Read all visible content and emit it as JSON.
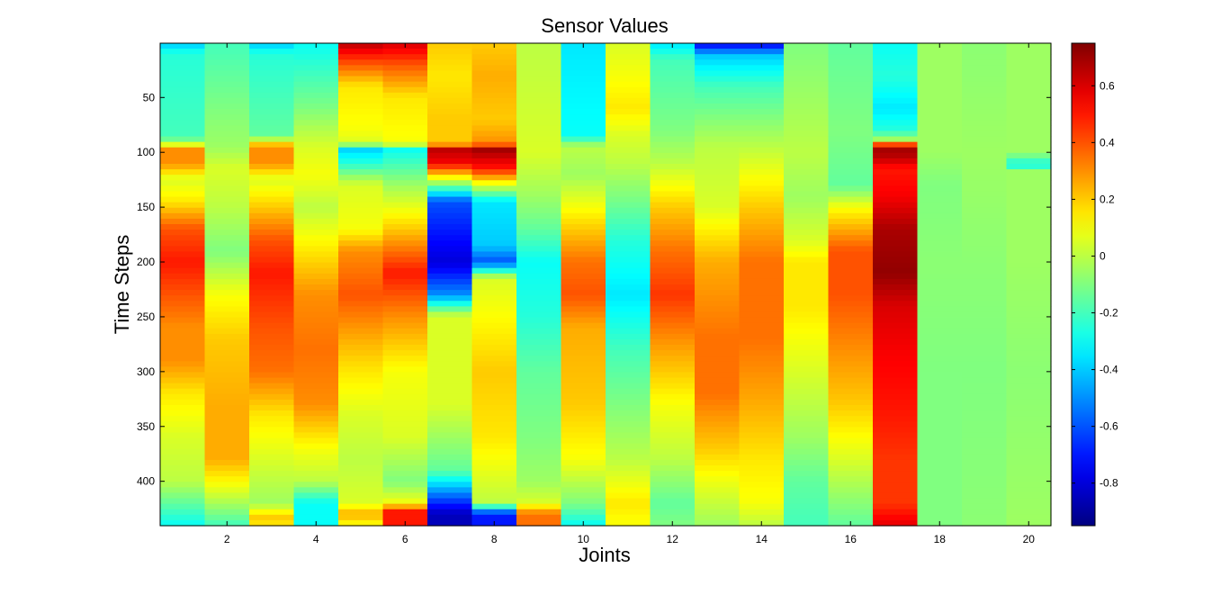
{
  "chart_data": {
    "type": "heatmap",
    "title": "Sensor Values",
    "xlabel": "Joints",
    "ylabel": "Time Steps",
    "x_range": [
      0.5,
      20.5
    ],
    "y_range": [
      0.5,
      440.5
    ],
    "y_reversed": true,
    "x_ticks": [
      2,
      4,
      6,
      8,
      10,
      12,
      14,
      16,
      18,
      20
    ],
    "y_ticks": [
      50,
      100,
      150,
      200,
      250,
      300,
      350,
      400
    ],
    "colorbar": {
      "colormap": "jet",
      "range": [
        -0.95,
        0.75
      ],
      "ticks": [
        -0.8,
        -0.6,
        -0.4,
        -0.2,
        0,
        0.2,
        0.4,
        0.6
      ]
    },
    "joints": [
      1,
      2,
      3,
      4,
      5,
      6,
      7,
      8,
      9,
      10,
      11,
      12,
      13,
      14,
      15,
      16,
      17,
      18,
      19,
      20
    ],
    "profiles": [
      [
        [
          1,
          -0.4
        ],
        [
          10,
          -0.25
        ],
        [
          85,
          -0.2
        ],
        [
          92,
          -0.05
        ],
        [
          95,
          0.3
        ],
        [
          110,
          0.3
        ],
        [
          125,
          0.05
        ],
        [
          145,
          0.15
        ],
        [
          170,
          0.4
        ],
        [
          200,
          0.5
        ],
        [
          230,
          0.4
        ],
        [
          260,
          0.3
        ],
        [
          290,
          0.3
        ],
        [
          320,
          0.15
        ],
        [
          360,
          0.05
        ],
        [
          400,
          0
        ],
        [
          420,
          -0.15
        ],
        [
          440,
          -0.3
        ]
      ],
      [
        [
          1,
          -0.2
        ],
        [
          60,
          -0.1
        ],
        [
          95,
          -0.05
        ],
        [
          115,
          0.05
        ],
        [
          150,
          0
        ],
        [
          190,
          -0.1
        ],
        [
          230,
          0.1
        ],
        [
          270,
          0.2
        ],
        [
          330,
          0.25
        ],
        [
          380,
          0.25
        ],
        [
          410,
          0.05
        ],
        [
          440,
          -0.2
        ]
      ],
      [
        [
          1,
          -0.4
        ],
        [
          10,
          -0.25
        ],
        [
          85,
          -0.15
        ],
        [
          95,
          0.3
        ],
        [
          110,
          0.3
        ],
        [
          125,
          0.05
        ],
        [
          150,
          0.2
        ],
        [
          180,
          0.4
        ],
        [
          210,
          0.5
        ],
        [
          260,
          0.4
        ],
        [
          300,
          0.35
        ],
        [
          340,
          0.15
        ],
        [
          380,
          0.05
        ],
        [
          420,
          -0.05
        ],
        [
          432,
          0.2
        ],
        [
          440,
          0.15
        ]
      ],
      [
        [
          1,
          -0.3
        ],
        [
          60,
          -0.1
        ],
        [
          95,
          0.05
        ],
        [
          120,
          0.1
        ],
        [
          150,
          0
        ],
        [
          190,
          0.15
        ],
        [
          230,
          0.3
        ],
        [
          280,
          0.35
        ],
        [
          330,
          0.3
        ],
        [
          370,
          0.1
        ],
        [
          400,
          0
        ],
        [
          420,
          -0.3
        ],
        [
          440,
          -0.3
        ]
      ],
      [
        [
          1,
          0.65
        ],
        [
          15,
          0.45
        ],
        [
          40,
          0.15
        ],
        [
          80,
          0.1
        ],
        [
          92,
          0.05
        ],
        [
          96,
          -0.4
        ],
        [
          110,
          -0.25
        ],
        [
          130,
          0.05
        ],
        [
          170,
          0.1
        ],
        [
          190,
          0.3
        ],
        [
          230,
          0.4
        ],
        [
          270,
          0.25
        ],
        [
          300,
          0.15
        ],
        [
          340,
          0.05
        ],
        [
          380,
          0
        ],
        [
          420,
          0.05
        ],
        [
          430,
          0.25
        ],
        [
          440,
          0.1
        ]
      ],
      [
        [
          1,
          0.6
        ],
        [
          20,
          0.4
        ],
        [
          50,
          0.15
        ],
        [
          92,
          0.1
        ],
        [
          97,
          -0.3
        ],
        [
          130,
          -0.05
        ],
        [
          170,
          0.2
        ],
        [
          210,
          0.5
        ],
        [
          250,
          0.3
        ],
        [
          300,
          0.1
        ],
        [
          360,
          0.05
        ],
        [
          400,
          -0.1
        ],
        [
          420,
          0.1
        ],
        [
          428,
          0.5
        ],
        [
          440,
          0.5
        ]
      ],
      [
        [
          1,
          0.2
        ],
        [
          30,
          0.15
        ],
        [
          70,
          0.2
        ],
        [
          92,
          0.2
        ],
        [
          97,
          0.65
        ],
        [
          110,
          0.55
        ],
        [
          125,
          0.05
        ],
        [
          145,
          -0.6
        ],
        [
          200,
          -0.8
        ],
        [
          230,
          -0.5
        ],
        [
          250,
          0.05
        ],
        [
          330,
          0.05
        ],
        [
          390,
          -0.15
        ],
        [
          410,
          -0.5
        ],
        [
          430,
          -0.85
        ],
        [
          440,
          -0.85
        ]
      ],
      [
        [
          1,
          0.2
        ],
        [
          30,
          0.25
        ],
        [
          70,
          0.2
        ],
        [
          92,
          0.3
        ],
        [
          97,
          0.7
        ],
        [
          115,
          0.5
        ],
        [
          130,
          0.05
        ],
        [
          145,
          -0.35
        ],
        [
          185,
          -0.4
        ],
        [
          200,
          -0.6
        ],
        [
          215,
          0.05
        ],
        [
          300,
          0.2
        ],
        [
          360,
          0.15
        ],
        [
          400,
          0.05
        ],
        [
          420,
          0
        ],
        [
          430,
          -0.7
        ],
        [
          440,
          -0.7
        ]
      ],
      [
        [
          1,
          0
        ],
        [
          100,
          0.05
        ],
        [
          140,
          -0.05
        ],
        [
          170,
          -0.15
        ],
        [
          200,
          -0.3
        ],
        [
          250,
          -0.25
        ],
        [
          300,
          -0.15
        ],
        [
          360,
          -0.1
        ],
        [
          400,
          -0.05
        ],
        [
          420,
          0.05
        ],
        [
          430,
          0.35
        ],
        [
          440,
          0.35
        ]
      ],
      [
        [
          1,
          -0.35
        ],
        [
          85,
          -0.3
        ],
        [
          95,
          0
        ],
        [
          120,
          -0.05
        ],
        [
          160,
          0.15
        ],
        [
          200,
          0.35
        ],
        [
          230,
          0.4
        ],
        [
          260,
          0.25
        ],
        [
          330,
          0.2
        ],
        [
          380,
          0.1
        ],
        [
          420,
          -0.1
        ],
        [
          440,
          -0.3
        ]
      ],
      [
        [
          1,
          0.05
        ],
        [
          60,
          0.15
        ],
        [
          85,
          0.05
        ],
        [
          110,
          0
        ],
        [
          140,
          -0.1
        ],
        [
          180,
          -0.25
        ],
        [
          230,
          -0.35
        ],
        [
          280,
          -0.2
        ],
        [
          330,
          -0.1
        ],
        [
          380,
          0
        ],
        [
          420,
          0.15
        ],
        [
          440,
          0.1
        ]
      ],
      [
        [
          1,
          -0.35
        ],
        [
          15,
          -0.2
        ],
        [
          80,
          -0.1
        ],
        [
          110,
          0
        ],
        [
          150,
          0.2
        ],
        [
          190,
          0.35
        ],
        [
          230,
          0.45
        ],
        [
          270,
          0.3
        ],
        [
          330,
          0.1
        ],
        [
          380,
          0
        ],
        [
          420,
          -0.15
        ],
        [
          440,
          -0.1
        ]
      ],
      [
        [
          1,
          -0.75
        ],
        [
          12,
          -0.4
        ],
        [
          40,
          -0.2
        ],
        [
          95,
          0
        ],
        [
          150,
          0.05
        ],
        [
          200,
          0.25
        ],
        [
          270,
          0.35
        ],
        [
          320,
          0.35
        ],
        [
          370,
          0.2
        ],
        [
          410,
          0.05
        ],
        [
          440,
          -0.05
        ]
      ],
      [
        [
          1,
          -0.75
        ],
        [
          12,
          -0.4
        ],
        [
          40,
          -0.2
        ],
        [
          95,
          0
        ],
        [
          150,
          0.2
        ],
        [
          200,
          0.35
        ],
        [
          270,
          0.35
        ],
        [
          330,
          0.25
        ],
        [
          380,
          0.15
        ],
        [
          420,
          0.1
        ],
        [
          440,
          0
        ]
      ],
      [
        [
          1,
          -0.1
        ],
        [
          100,
          0
        ],
        [
          140,
          -0.05
        ],
        [
          180,
          0.05
        ],
        [
          200,
          0.15
        ],
        [
          240,
          0.15
        ],
        [
          300,
          0.05
        ],
        [
          360,
          -0.05
        ],
        [
          400,
          -0.15
        ],
        [
          440,
          -0.2
        ]
      ],
      [
        [
          1,
          -0.15
        ],
        [
          80,
          -0.1
        ],
        [
          130,
          -0.15
        ],
        [
          150,
          0.1
        ],
        [
          190,
          0.4
        ],
        [
          230,
          0.4
        ],
        [
          280,
          0.3
        ],
        [
          330,
          0.2
        ],
        [
          380,
          0.05
        ],
        [
          410,
          -0.05
        ],
        [
          440,
          -0.15
        ]
      ],
      [
        [
          1,
          -0.3
        ],
        [
          30,
          -0.25
        ],
        [
          60,
          -0.35
        ],
        [
          80,
          -0.25
        ],
        [
          90,
          0
        ],
        [
          95,
          0.7
        ],
        [
          105,
          0.65
        ],
        [
          115,
          0.5
        ],
        [
          140,
          0.55
        ],
        [
          170,
          0.68
        ],
        [
          210,
          0.72
        ],
        [
          240,
          0.6
        ],
        [
          280,
          0.55
        ],
        [
          340,
          0.5
        ],
        [
          380,
          0.45
        ],
        [
          420,
          0.45
        ],
        [
          440,
          0.58
        ]
      ],
      [
        [
          1,
          -0.05
        ],
        [
          100,
          -0.05
        ],
        [
          130,
          -0.1
        ],
        [
          200,
          -0.08
        ],
        [
          300,
          -0.1
        ],
        [
          440,
          -0.1
        ]
      ],
      [
        [
          1,
          -0.08
        ],
        [
          100,
          -0.05
        ],
        [
          200,
          -0.08
        ],
        [
          300,
          -0.1
        ],
        [
          440,
          -0.08
        ]
      ],
      [
        [
          1,
          -0.05
        ],
        [
          100,
          -0.05
        ],
        [
          112,
          -0.3
        ],
        [
          116,
          -0.05
        ],
        [
          200,
          -0.05
        ],
        [
          300,
          -0.08
        ],
        [
          440,
          -0.05
        ]
      ]
    ]
  }
}
